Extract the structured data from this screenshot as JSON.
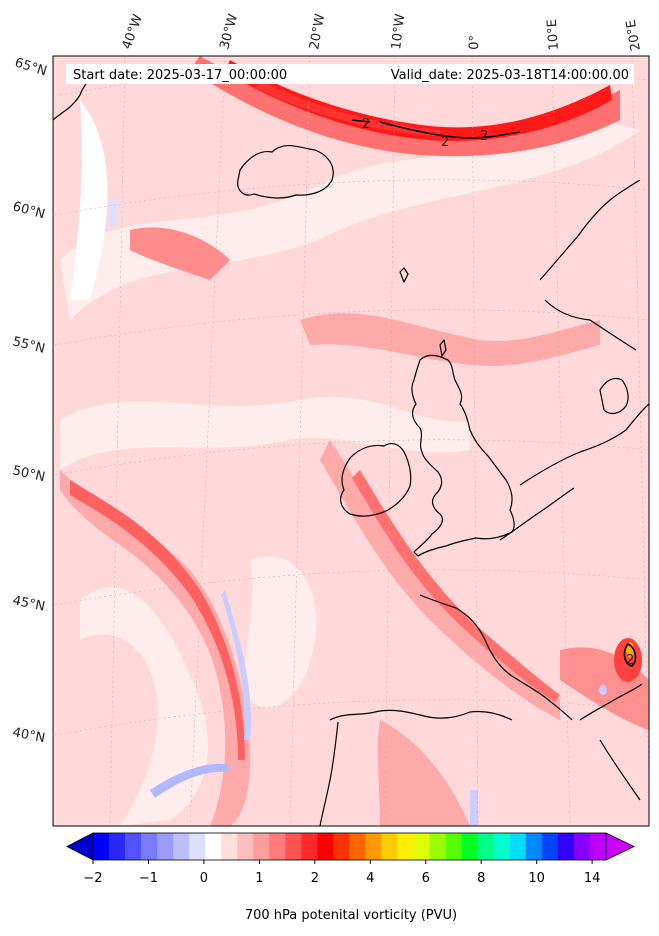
{
  "header": {
    "start_date": "Start date: 2025-03-17_00:00:00",
    "valid_date": "Valid_date: 2025-03-18T14:00:00.00"
  },
  "longitude_labels": [
    "40°W",
    "30°W",
    "20°W",
    "10°W",
    "0°",
    "10°E",
    "20°E"
  ],
  "latitude_labels": [
    "65°N",
    "60°N",
    "55°N",
    "50°N",
    "45°N",
    "40°N"
  ],
  "contour_labels": [
    "2",
    "2",
    "2",
    "2"
  ],
  "colorbar": {
    "title": "700 hPa potenital vorticity (PVU)",
    "tick_labels": [
      "−2",
      "−1",
      "0",
      "1",
      "2",
      "4",
      "6",
      "8",
      "10",
      "14"
    ],
    "colors": [
      "#0000ff",
      "#2929ff",
      "#5252ff",
      "#7b7bff",
      "#9c9cff",
      "#bdbdff",
      "#dedeff",
      "#ffffff",
      "#ffdede",
      "#ffbdbd",
      "#ff9c9c",
      "#ff7b7b",
      "#ff5252",
      "#ff2929",
      "#ff0000",
      "#ff3300",
      "#ff6600",
      "#ff9900",
      "#ffcc00",
      "#ffee00",
      "#ddff00",
      "#99ff00",
      "#55ff00",
      "#00ff22",
      "#00ff88",
      "#00ffcc",
      "#00ddff",
      "#0088ff",
      "#0044ff",
      "#3300ff",
      "#8800ff",
      "#bb00ff"
    ]
  },
  "map_colors": {
    "background": "#ffd9d9",
    "light": "#ffeded",
    "pale": "#ffffff",
    "medium": "#ffaaaa",
    "strong": "#ff7070",
    "jet": "#ff1a1a",
    "blue": "#c8ccff",
    "coast": "#000000"
  }
}
